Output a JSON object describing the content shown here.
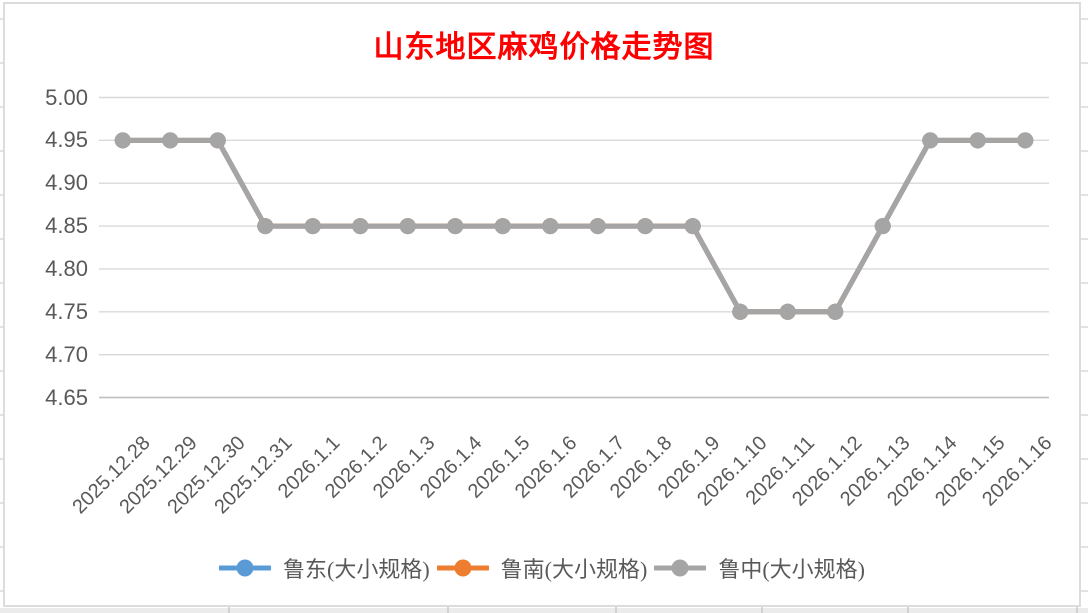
{
  "sheet": {
    "gridline_color": "#d9d9d9",
    "bottom_strip_color": "#ebebeb",
    "bottom_strip_tick_color": "#c8c8c8",
    "chart_border_color": "#dcdcdc"
  },
  "chart_data": {
    "type": "line",
    "title": "山东地区麻鸡价格走势图",
    "title_color": "#ff0000",
    "categories": [
      "2025.12.28",
      "2025.12.29",
      "2025.12.30",
      "2025.12.31",
      "2026.1.1",
      "2026.1.2",
      "2026.1.3",
      "2026.1.4",
      "2026.1.5",
      "2026.1.6",
      "2026.1.7",
      "2026.1.8",
      "2026.1.9",
      "2026.1.10",
      "2026.1.11",
      "2026.1.12",
      "2026.1.13",
      "2026.1.14",
      "2026.1.15",
      "2026.1.16"
    ],
    "series": [
      {
        "name": "鲁东(大小规格)",
        "color": "#5b9bd5",
        "values": [
          4.95,
          4.95,
          4.95,
          4.85,
          4.85,
          4.85,
          4.85,
          4.85,
          4.85,
          4.85,
          4.85,
          4.85,
          4.85,
          4.75,
          4.75,
          4.75,
          4.85,
          4.95,
          4.95,
          4.95
        ]
      },
      {
        "name": "鲁南(大小规格)",
        "color": "#ed7d31",
        "values": [
          4.95,
          4.95,
          4.95,
          4.85,
          4.85,
          4.85,
          4.85,
          4.85,
          4.85,
          4.85,
          4.85,
          4.85,
          4.85,
          4.75,
          4.75,
          4.75,
          4.85,
          4.95,
          4.95,
          4.95
        ]
      },
      {
        "name": "鲁中(大小规格)",
        "color": "#a5a5a5",
        "values": [
          4.95,
          4.95,
          4.95,
          4.85,
          4.85,
          4.85,
          4.85,
          4.85,
          4.85,
          4.85,
          4.85,
          4.85,
          4.85,
          4.75,
          4.75,
          4.75,
          4.85,
          4.95,
          4.95,
          4.95
        ]
      }
    ],
    "ylim": [
      4.65,
      5.0
    ],
    "ytick_step": 0.05,
    "yticks": [
      "5.00",
      "4.95",
      "4.90",
      "4.85",
      "4.80",
      "4.75",
      "4.70",
      "4.65"
    ],
    "grid": true,
    "gridline_color": "#d9d9d9",
    "axis_line_color": "#c3c3c3",
    "axis_text_color": "#595959",
    "legend_position": "bottom",
    "xlabel": "",
    "ylabel": ""
  }
}
